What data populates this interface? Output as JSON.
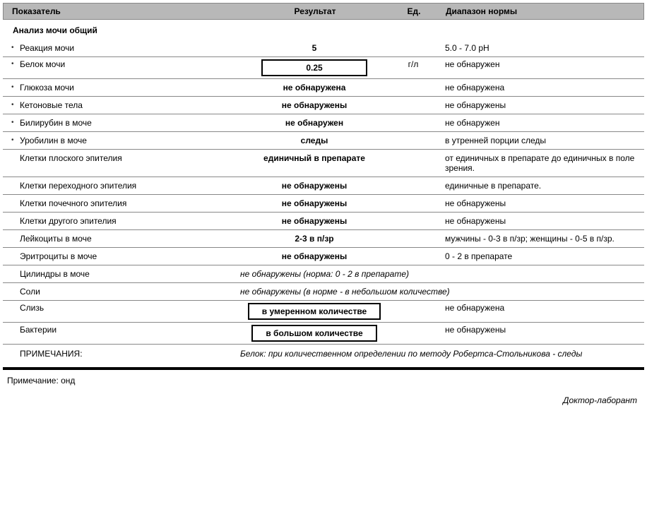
{
  "header": {
    "indicator": "Показатель",
    "result": "Результат",
    "unit": "Ед.",
    "range": "Диапазон нормы"
  },
  "section_title": "Анализ мочи общий",
  "rows": [
    {
      "bullet": true,
      "box": false,
      "indicator": "Реакция мочи",
      "result": "5",
      "unit": "",
      "range": "5.0 - 7.0 pH"
    },
    {
      "bullet": true,
      "box": true,
      "indicator": "Белок мочи",
      "result": "0.25",
      "unit": "г/л",
      "range": "не обнаружен"
    },
    {
      "bullet": true,
      "box": false,
      "indicator": "Глюкоза мочи",
      "result": "не обнаружена",
      "unit": "",
      "range": "не обнаружена"
    },
    {
      "bullet": true,
      "box": false,
      "indicator": "Кетоновые тела",
      "result": "не обнаружены",
      "unit": "",
      "range": "не обнаружены"
    },
    {
      "bullet": true,
      "box": false,
      "indicator": "Билирубин в моче",
      "result": "не обнаружен",
      "unit": "",
      "range": "не обнаружен"
    },
    {
      "bullet": true,
      "box": false,
      "indicator": "Уробилин в моче",
      "result": "следы",
      "unit": "",
      "range": "в утренней порции следы"
    },
    {
      "bullet": false,
      "box": false,
      "indicator": "Клетки плоского эпителия",
      "result": "единичный в препарате",
      "unit": "",
      "range": "от единичных в препарате до единичных в поле зрения."
    },
    {
      "bullet": false,
      "box": false,
      "indicator": "Клетки переходного эпителия",
      "result": "не обнаружены",
      "unit": "",
      "range": "единичные в препарате."
    },
    {
      "bullet": false,
      "box": false,
      "indicator": "Клетки почечного эпителия",
      "result": "не обнаружены",
      "unit": "",
      "range": "не обнаружены"
    },
    {
      "bullet": false,
      "box": false,
      "indicator": "Клетки другого эпителия",
      "result": "не обнаружены",
      "unit": "",
      "range": "не обнаружены"
    },
    {
      "bullet": false,
      "box": false,
      "indicator": "Лейкоциты в моче",
      "result": "2-3 в п/зр",
      "unit": "",
      "range": "мужчины - 0-3 в п/зр; женщины - 0-5 в п/зр."
    },
    {
      "bullet": false,
      "box": false,
      "indicator": "Эритроциты в моче",
      "result": "не обнаружены",
      "unit": "",
      "range": "0 - 2 в препарате"
    },
    {
      "bullet": false,
      "box": false,
      "span": true,
      "indicator": "Цилиндры в моче",
      "result": "не обнаружены (норма: 0 - 2 в препарате)"
    },
    {
      "bullet": false,
      "box": false,
      "span": true,
      "indicator": "Соли",
      "result": "не обнаружены (в норме - в небольшом количестве)"
    },
    {
      "bullet": false,
      "box": true,
      "indicator": "Слизь",
      "result": "в умеренном количестве",
      "unit": "",
      "range": "не обнаружена"
    },
    {
      "bullet": false,
      "box": true,
      "indicator": "Бактерии",
      "result": "в большом количестве",
      "unit": "",
      "range": "не обнаружены"
    }
  ],
  "notes": {
    "label": "ПРИМЕЧАНИЯ:",
    "text": "Белок: при количественном определении по методу Робертса-Стольникова - следы"
  },
  "footnote": "Примечание:   онд",
  "signature": "Доктор-лаборант"
}
